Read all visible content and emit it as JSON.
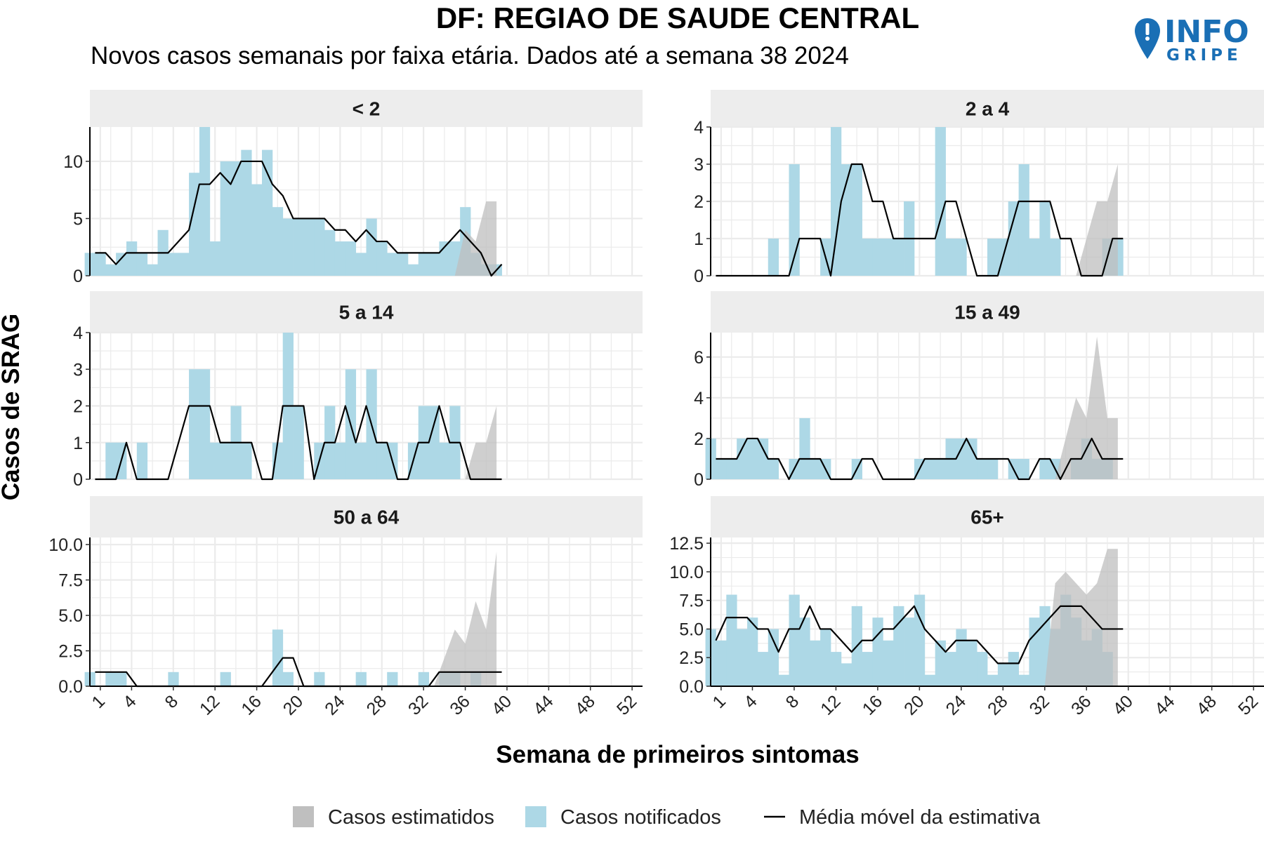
{
  "title": "DF: REGIAO DE SAUDE CENTRAL",
  "subtitle": "Novos casos semanais por faixa etária. Dados até a semana 38 2024",
  "logo": {
    "line1": "INFO",
    "line2": "GRIPE",
    "icon": "map-pin-exclamation-icon"
  },
  "colors": {
    "notified": "#add8e6",
    "estimated": "#bfbfbf",
    "moving_average": "#000000",
    "strip": "#ededed",
    "grid": "#ebebeb",
    "logo": "#1a6fb5"
  },
  "chart_data": {
    "type": "bar",
    "xlabel": "Semana de primeiros sintomas",
    "ylabel": "Casos de SRAG",
    "x_ticks": [
      1,
      4,
      8,
      12,
      16,
      20,
      24,
      28,
      32,
      36,
      40,
      44,
      48,
      52
    ],
    "xlim": [
      0,
      53
    ],
    "legend": {
      "position": "bottom",
      "items": [
        {
          "label": "Casos estimatidos",
          "kind": "estimated"
        },
        {
          "label": "Casos notificados",
          "kind": "notified"
        },
        {
          "label": "Média móvel da estimativa",
          "kind": "line"
        }
      ]
    },
    "panels": [
      {
        "label": "< 2",
        "ylim": [
          0,
          13
        ],
        "yticks": [
          0,
          5,
          10
        ],
        "ytick_labels": [
          "0",
          "5",
          "10"
        ],
        "notified": [
          2,
          2,
          1,
          2,
          3,
          2,
          1,
          4,
          2,
          2,
          9,
          13,
          3,
          10,
          10,
          11,
          8,
          11,
          6,
          5,
          5,
          5,
          5,
          4,
          3,
          3,
          2,
          5,
          3,
          2,
          2,
          1,
          2,
          2,
          3,
          3,
          6,
          2,
          1,
          1
        ],
        "moving_average": [
          2,
          2,
          1,
          2,
          2,
          2,
          2,
          2,
          3,
          4,
          8,
          8,
          9,
          8,
          10,
          10,
          10,
          8,
          7,
          5,
          5,
          5,
          5,
          4,
          4,
          3,
          4,
          3,
          3,
          2,
          2,
          2,
          2,
          2,
          3,
          4,
          3,
          2,
          0,
          1
        ],
        "band_upper": [
          0,
          0,
          0,
          0,
          0,
          0,
          0,
          0,
          0,
          0,
          0,
          0,
          0,
          0,
          0,
          0,
          0,
          0,
          0,
          0,
          0,
          0,
          0,
          0,
          0,
          0,
          0,
          0,
          0,
          0,
          0,
          0,
          0,
          0,
          0,
          0,
          4,
          3,
          6.5,
          6.5
        ],
        "band_lower": [
          0,
          0,
          0,
          0,
          0,
          0,
          0,
          0,
          0,
          0,
          0,
          0,
          0,
          0,
          0,
          0,
          0,
          0,
          0,
          0,
          0,
          0,
          0,
          0,
          0,
          0,
          0,
          0,
          0,
          0,
          0,
          0,
          0,
          0,
          0,
          0,
          0,
          0,
          0,
          0
        ]
      },
      {
        "label": "2 a 4",
        "ylim": [
          0,
          4
        ],
        "yticks": [
          0,
          1,
          2,
          3,
          4
        ],
        "ytick_labels": [
          "0",
          "1",
          "2",
          "3",
          "4"
        ],
        "notified": [
          0,
          0,
          0,
          0,
          0,
          0,
          1,
          0,
          3,
          0,
          0,
          1,
          4,
          3,
          3,
          1,
          1,
          1,
          1,
          2,
          0,
          0,
          4,
          1,
          1,
          0,
          0,
          1,
          1,
          2,
          3,
          1,
          2,
          1,
          0,
          0,
          0,
          0,
          1,
          1
        ],
        "moving_average": [
          0,
          0,
          0,
          0,
          0,
          0,
          0,
          0,
          1,
          1,
          1,
          0,
          2,
          3,
          3,
          2,
          2,
          1,
          1,
          1,
          1,
          1,
          2,
          2,
          1,
          0,
          0,
          0,
          1,
          2,
          2,
          2,
          2,
          1,
          1,
          0,
          0,
          0,
          1,
          1
        ],
        "band_upper": [
          0,
          0,
          0,
          0,
          0,
          0,
          0,
          0,
          0,
          0,
          0,
          0,
          0,
          0,
          0,
          0,
          0,
          0,
          0,
          0,
          0,
          0,
          0,
          0,
          0,
          0,
          0,
          0,
          0,
          0,
          0,
          0,
          0,
          0,
          0,
          0,
          1,
          2,
          2,
          3
        ],
        "band_lower": [
          0,
          0,
          0,
          0,
          0,
          0,
          0,
          0,
          0,
          0,
          0,
          0,
          0,
          0,
          0,
          0,
          0,
          0,
          0,
          0,
          0,
          0,
          0,
          0,
          0,
          0,
          0,
          0,
          0,
          0,
          0,
          0,
          0,
          0,
          0,
          0,
          0,
          0,
          0,
          0
        ]
      },
      {
        "label": "5 a 14",
        "ylim": [
          0,
          4
        ],
        "yticks": [
          0,
          1,
          2,
          3,
          4
        ],
        "ytick_labels": [
          "0",
          "1",
          "2",
          "3",
          "4"
        ],
        "notified": [
          0,
          0,
          1,
          1,
          0,
          1,
          0,
          0,
          0,
          0,
          3,
          3,
          1,
          1,
          2,
          1,
          0,
          0,
          1,
          4,
          2,
          0,
          1,
          2,
          1,
          3,
          1,
          3,
          1,
          1,
          0,
          1,
          2,
          2,
          1,
          2,
          0,
          0,
          0,
          0
        ],
        "moving_average": [
          0,
          0,
          0,
          1,
          0,
          0,
          0,
          0,
          1,
          2,
          2,
          2,
          1,
          1,
          1,
          1,
          0,
          0,
          2,
          2,
          2,
          0,
          1,
          1,
          2,
          1,
          2,
          1,
          1,
          0,
          0,
          1,
          1,
          2,
          1,
          1,
          0,
          0,
          0,
          0
        ],
        "band_upper": [
          0,
          0,
          0,
          0,
          0,
          0,
          0,
          0,
          0,
          0,
          0,
          0,
          0,
          0,
          0,
          0,
          0,
          0,
          0,
          0,
          0,
          0,
          0,
          0,
          0,
          0,
          0,
          0,
          0,
          0,
          0,
          0,
          0,
          0,
          0,
          0,
          0,
          1,
          1,
          2
        ],
        "band_lower": [
          0,
          0,
          0,
          0,
          0,
          0,
          0,
          0,
          0,
          0,
          0,
          0,
          0,
          0,
          0,
          0,
          0,
          0,
          0,
          0,
          0,
          0,
          0,
          0,
          0,
          0,
          0,
          0,
          0,
          0,
          0,
          0,
          0,
          0,
          0,
          0,
          0,
          0,
          0,
          0
        ]
      },
      {
        "label": "15 a 49",
        "ylim": [
          0,
          7.2
        ],
        "yticks": [
          0,
          2,
          4,
          6
        ],
        "ytick_labels": [
          "0",
          "2",
          "4",
          "6"
        ],
        "notified": [
          2,
          1,
          1,
          2,
          2,
          2,
          1,
          0,
          1,
          3,
          1,
          1,
          0,
          0,
          1,
          0,
          0,
          0,
          0,
          0,
          1,
          1,
          1,
          2,
          2,
          2,
          1,
          1,
          0,
          1,
          1,
          0,
          1,
          1,
          0,
          1,
          2,
          1,
          1,
          0
        ],
        "moving_average": [
          1,
          1,
          1,
          2,
          2,
          1,
          1,
          0,
          1,
          1,
          1,
          0,
          0,
          0,
          1,
          1,
          0,
          0,
          0,
          0,
          1,
          1,
          1,
          1,
          2,
          1,
          1,
          1,
          1,
          0,
          0,
          1,
          1,
          0,
          1,
          1,
          2,
          1,
          1,
          1
        ],
        "band_upper": [
          0,
          0,
          0,
          0,
          0,
          0,
          0,
          0,
          0,
          0,
          0,
          0,
          0,
          0,
          0,
          0,
          0,
          0,
          0,
          0,
          0,
          0,
          0,
          0,
          0,
          0,
          0,
          0,
          0,
          0,
          0,
          0,
          0,
          0,
          2,
          4,
          3,
          7,
          3,
          3
        ],
        "band_lower": [
          0,
          0,
          0,
          0,
          0,
          0,
          0,
          0,
          0,
          0,
          0,
          0,
          0,
          0,
          0,
          0,
          0,
          0,
          0,
          0,
          0,
          0,
          0,
          0,
          0,
          0,
          0,
          0,
          0,
          0,
          0,
          0,
          0,
          0,
          0,
          0,
          0,
          0,
          0,
          0
        ]
      },
      {
        "label": "50 a 64",
        "ylim": [
          0,
          10.5
        ],
        "yticks": [
          0,
          2.5,
          5,
          7.5,
          10
        ],
        "ytick_labels": [
          "0.0",
          "2.5",
          "5.0",
          "7.5",
          "10.0"
        ],
        "notified": [
          1,
          0,
          1,
          1,
          0,
          0,
          0,
          0,
          1,
          0,
          0,
          0,
          0,
          1,
          0,
          0,
          0,
          0,
          4,
          1,
          0,
          0,
          1,
          0,
          0,
          0,
          1,
          0,
          0,
          1,
          0,
          0,
          1,
          0,
          1,
          1,
          0,
          1,
          0,
          0
        ],
        "moving_average": [
          1,
          1,
          1,
          1,
          0,
          0,
          0,
          0,
          0,
          0,
          0,
          0,
          0,
          0,
          0,
          0,
          0,
          1,
          2,
          2,
          0,
          0,
          0,
          0,
          0,
          0,
          0,
          0,
          0,
          0,
          0,
          0,
          0,
          1,
          1,
          1,
          1,
          1,
          1,
          1
        ],
        "band_upper": [
          0,
          0,
          0,
          0,
          0,
          0,
          0,
          0,
          0,
          0,
          0,
          0,
          0,
          0,
          0,
          0,
          0,
          0,
          0,
          0,
          0,
          0,
          0,
          0,
          0,
          0,
          0,
          0,
          0,
          0,
          0,
          0,
          0,
          0,
          2,
          4,
          3,
          6,
          4,
          9.5
        ],
        "band_lower": [
          0,
          0,
          0,
          0,
          0,
          0,
          0,
          0,
          0,
          0,
          0,
          0,
          0,
          0,
          0,
          0,
          0,
          0,
          0,
          0,
          0,
          0,
          0,
          0,
          0,
          0,
          0,
          0,
          0,
          0,
          0,
          0,
          0,
          0,
          0,
          0,
          0,
          0,
          0,
          0
        ]
      },
      {
        "label": "65+",
        "ylim": [
          0,
          13
        ],
        "yticks": [
          0,
          2.5,
          5,
          7.5,
          10,
          12.5
        ],
        "ytick_labels": [
          "0.0",
          "2.5",
          "5.0",
          "7.5",
          "10.0",
          "12.5"
        ],
        "notified": [
          5,
          4,
          8,
          5,
          6,
          3,
          5,
          1,
          8,
          6,
          4,
          5,
          3,
          2,
          7,
          3,
          6,
          4,
          7,
          6,
          8,
          1,
          4,
          3,
          5,
          4,
          3,
          1,
          2,
          3,
          1,
          6,
          7,
          5,
          8,
          6,
          4,
          5,
          3,
          0
        ],
        "moving_average": [
          4,
          6,
          6,
          6,
          5,
          5,
          3,
          5,
          5,
          7,
          5,
          5,
          4,
          3,
          4,
          4,
          5,
          5,
          6,
          7,
          5,
          4,
          3,
          4,
          4,
          4,
          3,
          2,
          2,
          2,
          4,
          5,
          6,
          7,
          7,
          7,
          6,
          5,
          5,
          5
        ],
        "band_upper": [
          0,
          0,
          0,
          0,
          0,
          0,
          0,
          0,
          0,
          0,
          0,
          0,
          0,
          0,
          0,
          0,
          0,
          0,
          0,
          0,
          0,
          0,
          0,
          0,
          0,
          0,
          0,
          0,
          0,
          0,
          0,
          0,
          0,
          9,
          10,
          9,
          8,
          9,
          12,
          12
        ],
        "band_lower": [
          0,
          0,
          0,
          0,
          0,
          0,
          0,
          0,
          0,
          0,
          0,
          0,
          0,
          0,
          0,
          0,
          0,
          0,
          0,
          0,
          0,
          0,
          0,
          0,
          0,
          0,
          0,
          0,
          0,
          0,
          0,
          0,
          0,
          0,
          0,
          0,
          0,
          0,
          0,
          0
        ]
      }
    ]
  }
}
